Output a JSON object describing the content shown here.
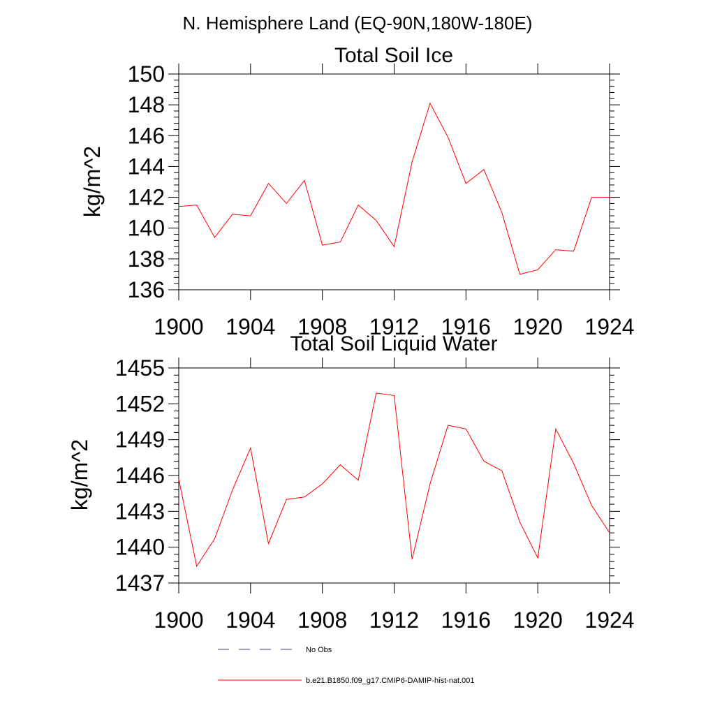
{
  "header": {
    "region_title": "N. Hemisphere Land (EQ-90N,180W-180E)"
  },
  "colors": {
    "model_line": "#ff0000",
    "obs_line": "#3a3a8c",
    "axis": "#000000"
  },
  "chart_data": [
    {
      "type": "line",
      "title": "Total Soil Ice",
      "xlabel": "",
      "ylabel": "kg/m^2",
      "xlim": [
        1900,
        1924
      ],
      "ylim": [
        136,
        150
      ],
      "x_ticks": [
        1900,
        1904,
        1908,
        1912,
        1916,
        1920,
        1924
      ],
      "y_ticks": [
        136,
        138,
        140,
        142,
        144,
        146,
        148,
        150
      ],
      "grid": false,
      "series": [
        {
          "name": "b.e21.B1850.f09_g17.CMIP6-DAMIP-hist-nat.001",
          "x": [
            1900,
            1901,
            1902,
            1903,
            1904,
            1905,
            1906,
            1907,
            1908,
            1909,
            1910,
            1911,
            1912,
            1913,
            1914,
            1915,
            1916,
            1917,
            1918,
            1919,
            1920,
            1921,
            1922,
            1923,
            1924
          ],
          "values": [
            141.4,
            141.5,
            139.4,
            140.9,
            140.8,
            142.9,
            141.6,
            143.1,
            138.9,
            139.1,
            141.5,
            140.5,
            138.8,
            144.3,
            148.1,
            145.9,
            142.9,
            143.8,
            141.0,
            137.0,
            137.3,
            138.6,
            138.5,
            142.0,
            142.0
          ]
        }
      ]
    },
    {
      "type": "line",
      "title": "Total Soil Liquid Water",
      "xlabel": "",
      "ylabel": "kg/m^2",
      "xlim": [
        1900,
        1924
      ],
      "ylim": [
        1437,
        1455
      ],
      "x_ticks": [
        1900,
        1904,
        1908,
        1912,
        1916,
        1920,
        1924
      ],
      "y_ticks": [
        1437,
        1440,
        1443,
        1446,
        1449,
        1452,
        1455
      ],
      "grid": false,
      "series": [
        {
          "name": "b.e21.B1850.f09_g17.CMIP6-DAMIP-hist-nat.001",
          "x": [
            1900,
            1901,
            1902,
            1903,
            1904,
            1905,
            1906,
            1907,
            1908,
            1909,
            1910,
            1911,
            1912,
            1913,
            1914,
            1915,
            1916,
            1917,
            1918,
            1919,
            1920,
            1921,
            1922,
            1923,
            1924
          ],
          "values": [
            1445.7,
            1438.4,
            1440.7,
            1444.8,
            1448.3,
            1440.3,
            1444.0,
            1444.2,
            1445.3,
            1446.9,
            1445.6,
            1452.9,
            1452.7,
            1439.0,
            1445.3,
            1450.2,
            1449.9,
            1447.2,
            1446.4,
            1442.1,
            1439.1,
            1449.9,
            1447.0,
            1443.5,
            1441.2
          ]
        }
      ]
    }
  ],
  "legend": {
    "placement": "bottom",
    "entries": [
      {
        "label": "No Obs",
        "style": "dashed",
        "color": "#3a3a8c"
      },
      {
        "label": "b.e21.B1850.f09_g17.CMIP6-DAMIP-hist-nat.001",
        "style": "solid",
        "color": "#ff0000"
      }
    ]
  }
}
